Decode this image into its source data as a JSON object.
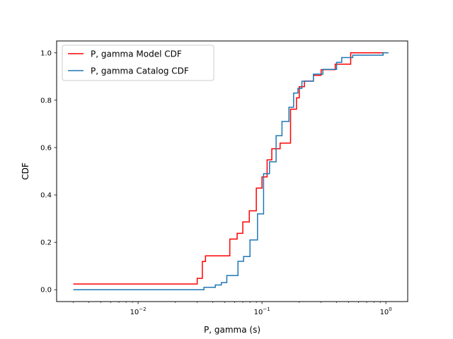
{
  "chart_data": {
    "type": "line",
    "step": true,
    "xscale": "log",
    "xlabel": "P, gamma (s)",
    "ylabel": "CDF",
    "xlim": [
      0.0022,
      1.5
    ],
    "ylim": [
      -0.05,
      1.05
    ],
    "xticks": [
      {
        "value": 0.01,
        "label": "10^-2"
      },
      {
        "value": 0.1,
        "label": "10^-1"
      },
      {
        "value": 1,
        "label": "10^0"
      }
    ],
    "yticks": [
      {
        "value": 0.0,
        "label": "0.0"
      },
      {
        "value": 0.2,
        "label": "0.2"
      },
      {
        "value": 0.4,
        "label": "0.4"
      },
      {
        "value": 0.6,
        "label": "0.6"
      },
      {
        "value": 0.8,
        "label": "0.8"
      },
      {
        "value": 1.0,
        "label": "1.0"
      }
    ],
    "legend": {
      "position": "top-left"
    },
    "grid": false,
    "series": [
      {
        "name": "P, gamma Model CDF",
        "color": "#ff0000",
        "x": [
          0.003,
          0.03,
          0.033,
          0.035,
          0.038,
          0.055,
          0.063,
          0.07,
          0.079,
          0.09,
          0.1,
          0.11,
          0.12,
          0.14,
          0.15,
          0.17,
          0.19,
          0.2,
          0.22,
          0.26,
          0.3,
          0.34,
          0.39,
          0.45,
          0.52,
          0.95
        ],
        "y": [
          0.024,
          0.048,
          0.119,
          0.143,
          0.143,
          0.214,
          0.238,
          0.286,
          0.333,
          0.429,
          0.476,
          0.548,
          0.595,
          0.619,
          0.619,
          0.762,
          0.81,
          0.857,
          0.881,
          0.905,
          0.929,
          0.929,
          0.952,
          0.952,
          1.0,
          1.0
        ]
      },
      {
        "name": "P, gamma Catalog CDF",
        "color": "#1f77b4",
        "x": [
          0.003,
          0.034,
          0.042,
          0.047,
          0.052,
          0.057,
          0.064,
          0.071,
          0.08,
          0.092,
          0.103,
          0.115,
          0.13,
          0.145,
          0.165,
          0.18,
          0.195,
          0.21,
          0.23,
          0.26,
          0.31,
          0.35,
          0.4,
          0.44,
          0.54,
          0.95,
          1.05
        ],
        "y": [
          0.0,
          0.01,
          0.02,
          0.03,
          0.06,
          0.06,
          0.12,
          0.14,
          0.21,
          0.32,
          0.49,
          0.54,
          0.65,
          0.71,
          0.77,
          0.83,
          0.85,
          0.88,
          0.88,
          0.91,
          0.93,
          0.93,
          0.96,
          0.98,
          0.99,
          1.0,
          1.0
        ]
      }
    ]
  }
}
